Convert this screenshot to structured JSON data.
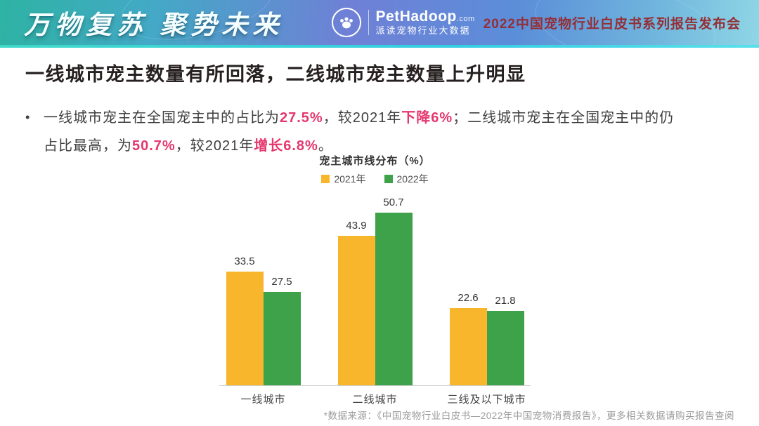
{
  "header": {
    "slogan": "万物复苏 聚势未来",
    "brand_name": "PetHadoop",
    "brand_suffix": ".com",
    "brand_tagline": "派读宠物行业大数据",
    "event_title": "2022中国宠物行业白皮书系列报告发布会"
  },
  "page": {
    "title": "一线城市宠主数量有所回落，二线城市宠主数量上升明显",
    "bullet_marker": "•",
    "footer_note": "*数据来源：《中国宠物行业白皮书—2022年中国宠物消费报告》，更多相关数据请购买报告查阅"
  },
  "bullet": {
    "segments": [
      {
        "text": "一线城市宠主在全国宠主中的占比为",
        "highlight": false
      },
      {
        "text": "27.5%",
        "highlight": true
      },
      {
        "text": "，较2021年",
        "highlight": false
      },
      {
        "text": "下降6%",
        "highlight": true
      },
      {
        "text": "；二线城市宠主在全国宠主中的仍",
        "highlight": false
      },
      {
        "text": "",
        "highlight": false,
        "break": true
      },
      {
        "text": "占比最高，为",
        "highlight": false
      },
      {
        "text": "50.7%",
        "highlight": true
      },
      {
        "text": "，较2021年",
        "highlight": false
      },
      {
        "text": "增长6.8%",
        "highlight": true
      },
      {
        "text": "。",
        "highlight": false
      }
    ]
  },
  "chart_data": {
    "type": "bar",
    "title": "宠主城市线分布（%）",
    "categories": [
      "一线城市",
      "二线城市",
      "三线及以下城市"
    ],
    "series": [
      {
        "name": "2021年",
        "color": "#f8b62d",
        "values": [
          33.5,
          43.9,
          22.6
        ]
      },
      {
        "name": "2022年",
        "color": "#3da24a",
        "values": [
          27.5,
          50.7,
          21.8
        ]
      }
    ],
    "ylim": [
      0,
      55
    ],
    "grid": false,
    "value_labels": true,
    "legend_position": "top",
    "xlabel": "",
    "ylabel": ""
  },
  "colors": {
    "highlight_pink": "#e6376e",
    "event_red": "#942f36",
    "bar_yellow": "#f8b62d",
    "bar_green": "#3da24a",
    "footer_gray": "#9b9b9b"
  }
}
